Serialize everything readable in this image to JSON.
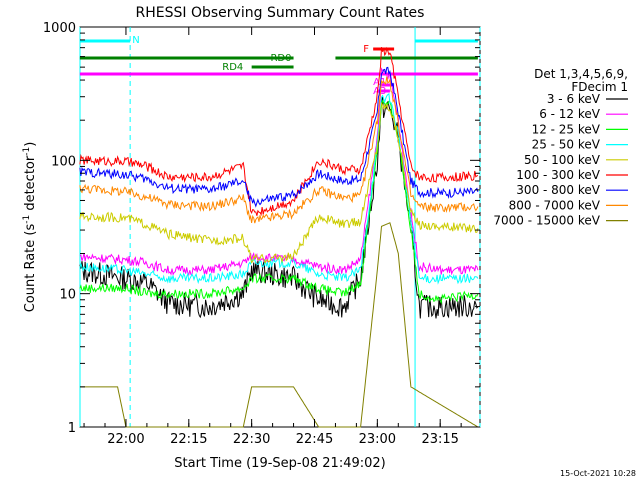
{
  "chart_data": {
    "type": "line",
    "title": "RHESSI Observing Summary Count Rates",
    "xlabel": "Start Time (19-Sep-08 21:49:02)",
    "ylabel": "Count Rate (s",
    "ylabel_sup1": "-1",
    "ylabel_mid": " detector",
    "ylabel_sup2": "-1",
    "ylabel_end": ")",
    "ylog": true,
    "xlim": [
      "21:49:02",
      "23:24:30"
    ],
    "ylim": [
      1,
      1000
    ],
    "x_ticks": [
      "22:00",
      "22:15",
      "22:30",
      "22:45",
      "23:00",
      "23:15"
    ],
    "y_ticks": [
      "1",
      "10",
      "100",
      "1000"
    ],
    "legend_header": [
      "Det 1,3,4,5,6,9,",
      "FDecim 1"
    ],
    "legend_placement": "right",
    "series": [
      {
        "name": "3 - 6 keV",
        "color": "#000000",
        "x": [
          "21:49",
          "22:00",
          "22:05",
          "22:10",
          "22:20",
          "22:28",
          "22:30",
          "22:40",
          "22:46",
          "22:52",
          "22:56",
          "23:00",
          "23:01",
          "23:03",
          "23:05",
          "23:08",
          "23:10",
          "23:15",
          "23:24"
        ],
        "y": [
          15,
          13,
          12,
          8.5,
          8,
          10,
          15,
          13,
          9,
          8,
          13,
          100,
          250,
          240,
          150,
          30,
          8,
          8,
          8
        ]
      },
      {
        "name": "6 - 12 keV",
        "color": "#ff00ff",
        "x": [
          "21:49",
          "22:00",
          "22:05",
          "22:10",
          "22:20",
          "22:28",
          "22:30",
          "22:40",
          "22:46",
          "22:52",
          "22:56",
          "23:00",
          "23:01",
          "23:03",
          "23:05",
          "23:08",
          "23:10",
          "23:15",
          "23:24"
        ],
        "y": [
          19,
          18,
          17,
          15,
          15,
          17,
          19,
          18,
          16,
          15,
          18,
          150,
          450,
          420,
          200,
          40,
          16,
          15,
          15
        ]
      },
      {
        "name": "12 - 25 keV",
        "color": "#00ff00",
        "x": [
          "21:49",
          "22:00",
          "22:05",
          "22:10",
          "22:20",
          "22:28",
          "22:30",
          "22:40",
          "22:46",
          "22:52",
          "22:56",
          "23:00",
          "23:01",
          "23:03",
          "23:05",
          "23:08",
          "23:10",
          "23:15",
          "23:24"
        ],
        "y": [
          11,
          11,
          10,
          10,
          10,
          11,
          13,
          13,
          11,
          10,
          12,
          120,
          270,
          260,
          150,
          30,
          10,
          9,
          10
        ]
      },
      {
        "name": "25 - 50 keV",
        "color": "#00ffff",
        "x": [
          "21:49",
          "22:00",
          "22:05",
          "22:10",
          "22:20",
          "22:28",
          "22:30",
          "22:40",
          "22:46",
          "22:52",
          "22:56",
          "23:00",
          "23:01",
          "23:03",
          "23:05",
          "23:08",
          "23:10",
          "23:15",
          "23:24"
        ],
        "y": [
          16,
          15,
          14,
          13,
          13,
          14,
          17,
          17,
          14,
          13,
          15,
          130,
          300,
          290,
          160,
          35,
          13,
          13,
          13
        ]
      },
      {
        "name": "50 - 100 keV",
        "color": "#cccc00",
        "x": [
          "21:49",
          "22:00",
          "22:05",
          "22:10",
          "22:20",
          "22:28",
          "22:30",
          "22:40",
          "22:46",
          "22:52",
          "22:56",
          "23:00",
          "23:01",
          "23:03",
          "23:05",
          "23:08",
          "23:10",
          "23:15",
          "23:24"
        ],
        "y": [
          38,
          37,
          33,
          28,
          25,
          26,
          18,
          19,
          38,
          33,
          35,
          130,
          260,
          250,
          150,
          40,
          33,
          32,
          31
        ]
      },
      {
        "name": "100 - 300 keV",
        "color": "#ff0000",
        "x": [
          "21:49",
          "22:00",
          "22:05",
          "22:10",
          "22:20",
          "22:28",
          "22:30",
          "22:40",
          "22:46",
          "22:52",
          "22:56",
          "23:00",
          "23:01",
          "23:03",
          "23:05",
          "23:08",
          "23:10",
          "23:15",
          "23:24"
        ],
        "y": [
          100,
          98,
          90,
          75,
          75,
          90,
          40,
          50,
          100,
          85,
          85,
          300,
          660,
          650,
          300,
          90,
          75,
          74,
          77
        ]
      },
      {
        "name": "300 - 800 keV",
        "color": "#0000ff",
        "x": [
          "21:49",
          "22:00",
          "22:05",
          "22:10",
          "22:20",
          "22:28",
          "22:30",
          "22:40",
          "22:46",
          "22:52",
          "22:56",
          "23:00",
          "23:01",
          "23:03",
          "23:05",
          "23:08",
          "23:10",
          "23:15",
          "23:24"
        ],
        "y": [
          82,
          78,
          72,
          62,
          60,
          70,
          48,
          55,
          80,
          70,
          72,
          230,
          470,
          460,
          230,
          70,
          58,
          57,
          58
        ]
      },
      {
        "name": "800 - 7000 keV",
        "color": "#ff8800",
        "x": [
          "21:49",
          "22:00",
          "22:05",
          "22:10",
          "22:20",
          "22:28",
          "22:30",
          "22:40",
          "22:46",
          "22:52",
          "22:56",
          "23:00",
          "23:01",
          "23:03",
          "23:05",
          "23:08",
          "23:10",
          "23:15",
          "23:24"
        ],
        "y": [
          62,
          58,
          53,
          47,
          45,
          52,
          35,
          40,
          60,
          52,
          54,
          200,
          400,
          390,
          190,
          55,
          45,
          44,
          45
        ]
      },
      {
        "name": "7000 - 15000 keV",
        "color": "#808000",
        "x": [
          "21:49",
          "21:58",
          "22:00",
          "22:28",
          "22:30",
          "22:40",
          "22:46",
          "22:56",
          "23:00",
          "23:01",
          "23:03",
          "23:05",
          "23:08",
          "23:24"
        ],
        "y": [
          2,
          2,
          1,
          1,
          2,
          2,
          1,
          1,
          15,
          32,
          34,
          20,
          2,
          1
        ]
      }
    ],
    "attenuator_bars": [
      {
        "label": "N",
        "color": "#00ffff",
        "segments": [
          [
            "21:49",
            "22:01"
          ],
          [
            "23:09",
            "23:24"
          ]
        ]
      },
      {
        "label": "RD0",
        "color": "#008000",
        "segments": [
          [
            "21:49",
            "22:40"
          ],
          [
            "22:50",
            "23:24"
          ]
        ]
      },
      {
        "label": "RD4",
        "color": "#008000",
        "segments": [
          [
            "22:30",
            "22:40"
          ]
        ]
      },
      {
        "label": "",
        "color": "#ff00ff",
        "segments": [
          [
            "21:49",
            "23:24"
          ]
        ]
      },
      {
        "label": "F",
        "color": "#ff0000",
        "segments": [
          [
            "22:59",
            "23:04"
          ]
        ]
      },
      {
        "label": "A1",
        "color": "#ff00ff",
        "segments": [
          [
            "23:01",
            "23:04"
          ]
        ]
      },
      {
        "label": "A3",
        "color": "#ff00ff",
        "segments": [
          [
            "23:00",
            "23:03"
          ]
        ]
      }
    ]
  },
  "footer": {
    "date": "15-Oct-2021 10:28"
  }
}
